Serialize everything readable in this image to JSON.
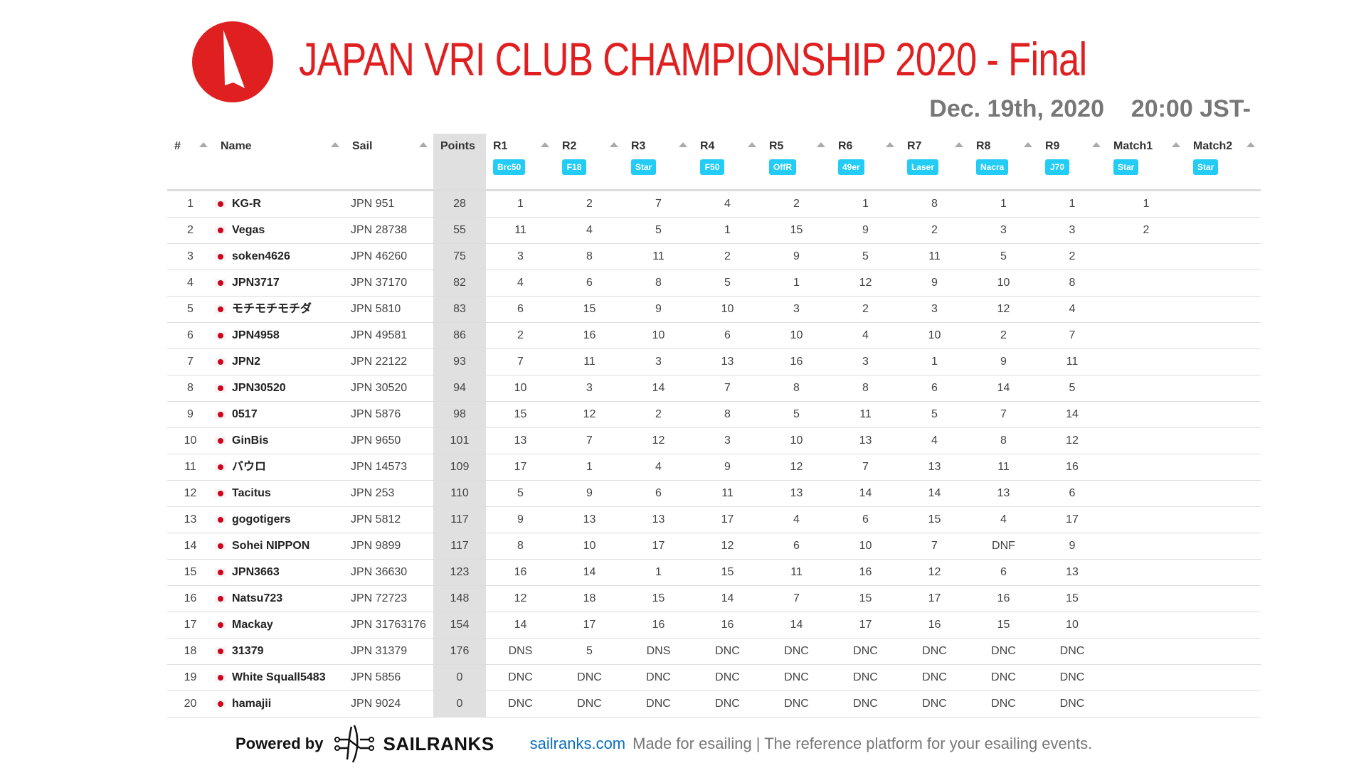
{
  "header": {
    "title": "JAPAN VRI CLUB CHAMPIONSHIP 2020 - Final",
    "date": "Dec. 19th, 2020    20:00 JST-",
    "brand_color": "#e02020",
    "logo_icon": "sail-icon"
  },
  "table": {
    "columns": [
      {
        "label": "#"
      },
      {
        "label": "Name"
      },
      {
        "label": "Sail"
      },
      {
        "label": "Points"
      },
      {
        "label": "R1",
        "boat": "Brc50"
      },
      {
        "label": "R2",
        "boat": "F18"
      },
      {
        "label": "R3",
        "boat": "Star"
      },
      {
        "label": "R4",
        "boat": "F50"
      },
      {
        "label": "R5",
        "boat": "OffR"
      },
      {
        "label": "R6",
        "boat": "49er"
      },
      {
        "label": "R7",
        "boat": "Laser"
      },
      {
        "label": "R8",
        "boat": "Nacra"
      },
      {
        "label": "R9",
        "boat": "J70"
      },
      {
        "label": "Match1",
        "boat": "Star"
      },
      {
        "label": "Match2",
        "boat": "Star"
      }
    ],
    "badge_color": "#22ccf5",
    "flag_icon": "japan-flag-icon",
    "rows": [
      {
        "rank": "1",
        "name": "KG-R",
        "sail": "JPN 951",
        "points": "28",
        "races": [
          "1",
          "2",
          "7",
          "4",
          "2",
          "1",
          "8",
          "1",
          "1",
          "1",
          ""
        ]
      },
      {
        "rank": "2",
        "name": "Vegas",
        "sail": "JPN 28738",
        "points": "55",
        "races": [
          "11",
          "4",
          "5",
          "1",
          "15",
          "9",
          "2",
          "3",
          "3",
          "2",
          ""
        ]
      },
      {
        "rank": "3",
        "name": "soken4626",
        "sail": "JPN 46260",
        "points": "75",
        "races": [
          "3",
          "8",
          "11",
          "2",
          "9",
          "5",
          "11",
          "5",
          "2",
          "",
          ""
        ]
      },
      {
        "rank": "4",
        "name": "JPN3717",
        "sail": "JPN 37170",
        "points": "82",
        "races": [
          "4",
          "6",
          "8",
          "5",
          "1",
          "12",
          "9",
          "10",
          "8",
          "",
          ""
        ]
      },
      {
        "rank": "5",
        "name": "モチモチモチダ",
        "sail": "JPN 5810",
        "points": "83",
        "races": [
          "6",
          "15",
          "9",
          "10",
          "3",
          "2",
          "3",
          "12",
          "4",
          "",
          ""
        ]
      },
      {
        "rank": "6",
        "name": "JPN4958",
        "sail": "JPN 49581",
        "points": "86",
        "races": [
          "2",
          "16",
          "10",
          "6",
          "10",
          "4",
          "10",
          "2",
          "7",
          "",
          ""
        ]
      },
      {
        "rank": "7",
        "name": "JPN2",
        "sail": "JPN 22122",
        "points": "93",
        "races": [
          "7",
          "11",
          "3",
          "13",
          "16",
          "3",
          "1",
          "9",
          "11",
          "",
          ""
        ]
      },
      {
        "rank": "8",
        "name": "JPN30520",
        "sail": "JPN 30520",
        "points": "94",
        "races": [
          "10",
          "3",
          "14",
          "7",
          "8",
          "8",
          "6",
          "14",
          "5",
          "",
          ""
        ]
      },
      {
        "rank": "9",
        "name": "0517",
        "sail": "JPN 5876",
        "points": "98",
        "races": [
          "15",
          "12",
          "2",
          "8",
          "5",
          "11",
          "5",
          "7",
          "14",
          "",
          ""
        ]
      },
      {
        "rank": "10",
        "name": "GinBis",
        "sail": "JPN 9650",
        "points": "101",
        "races": [
          "13",
          "7",
          "12",
          "3",
          "10",
          "13",
          "4",
          "8",
          "12",
          "",
          ""
        ]
      },
      {
        "rank": "11",
        "name": "バウロ",
        "sail": "JPN 14573",
        "points": "109",
        "races": [
          "17",
          "1",
          "4",
          "9",
          "12",
          "7",
          "13",
          "11",
          "16",
          "",
          ""
        ]
      },
      {
        "rank": "12",
        "name": "Tacitus",
        "sail": "JPN 253",
        "points": "110",
        "races": [
          "5",
          "9",
          "6",
          "11",
          "13",
          "14",
          "14",
          "13",
          "6",
          "",
          ""
        ]
      },
      {
        "rank": "13",
        "name": "gogotigers",
        "sail": "JPN 5812",
        "points": "117",
        "races": [
          "9",
          "13",
          "13",
          "17",
          "4",
          "6",
          "15",
          "4",
          "17",
          "",
          ""
        ]
      },
      {
        "rank": "14",
        "name": "Sohei NIPPON",
        "sail": "JPN 9899",
        "points": "117",
        "races": [
          "8",
          "10",
          "17",
          "12",
          "6",
          "10",
          "7",
          "DNF",
          "9",
          "",
          ""
        ]
      },
      {
        "rank": "15",
        "name": "JPN3663",
        "sail": "JPN 36630",
        "points": "123",
        "races": [
          "16",
          "14",
          "1",
          "15",
          "11",
          "16",
          "12",
          "6",
          "13",
          "",
          ""
        ]
      },
      {
        "rank": "16",
        "name": "Natsu723",
        "sail": "JPN 72723",
        "points": "148",
        "races": [
          "12",
          "18",
          "15",
          "14",
          "7",
          "15",
          "17",
          "16",
          "15",
          "",
          ""
        ]
      },
      {
        "rank": "17",
        "name": "Mackay",
        "sail": "JPN 31763176",
        "points": "154",
        "races": [
          "14",
          "17",
          "16",
          "16",
          "14",
          "17",
          "16",
          "15",
          "10",
          "",
          ""
        ]
      },
      {
        "rank": "18",
        "name": "31379",
        "sail": "JPN 31379",
        "points": "176",
        "races": [
          "DNS",
          "5",
          "DNS",
          "DNC",
          "DNC",
          "DNC",
          "DNC",
          "DNC",
          "DNC",
          "",
          ""
        ]
      },
      {
        "rank": "19",
        "name": "White Squall5483",
        "sail": "JPN 5856",
        "points": "0",
        "races": [
          "DNC",
          "DNC",
          "DNC",
          "DNC",
          "DNC",
          "DNC",
          "DNC",
          "DNC",
          "DNC",
          "",
          ""
        ]
      },
      {
        "rank": "20",
        "name": "hamajii",
        "sail": "JPN 9024",
        "points": "0",
        "races": [
          "DNC",
          "DNC",
          "DNC",
          "DNC",
          "DNC",
          "DNC",
          "DNC",
          "DNC",
          "DNC",
          "",
          ""
        ]
      }
    ]
  },
  "footer": {
    "powered_by": "Powered by",
    "brand": "SAILRANKS",
    "link": "sailranks.com",
    "tagline": "Made for esailing | The reference platform for your esailing events."
  }
}
